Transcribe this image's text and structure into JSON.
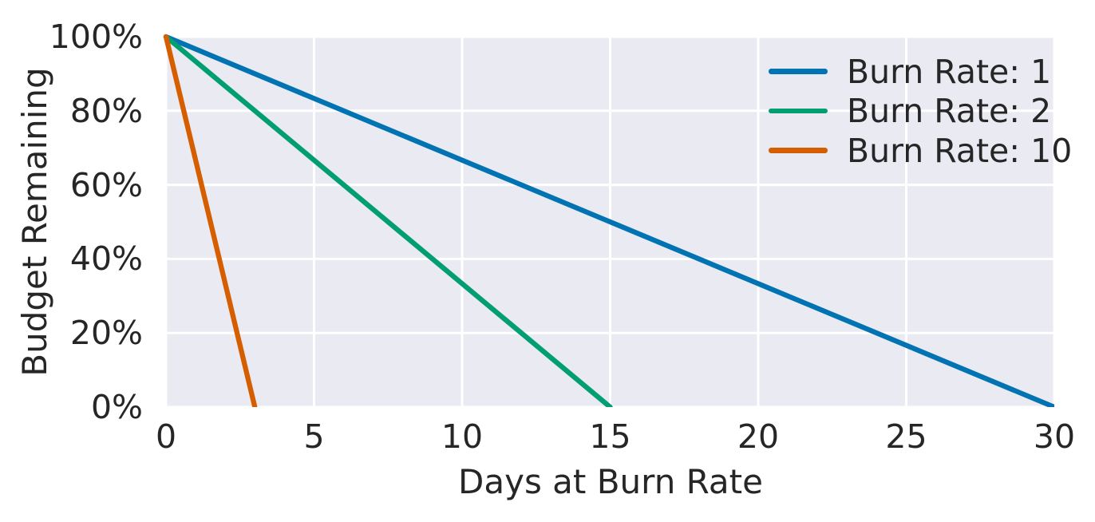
{
  "chart_data": {
    "type": "line",
    "title": "",
    "xlabel": "Days at Burn Rate",
    "ylabel": "Budget Remaining",
    "xlim": [
      0,
      30
    ],
    "ylim": [
      0,
      100
    ],
    "grid": true,
    "x_ticks": {
      "values": [
        0,
        5,
        10,
        15,
        20,
        25,
        30
      ],
      "labels": [
        "0",
        "5",
        "10",
        "15",
        "20",
        "25",
        "30"
      ]
    },
    "y_ticks": {
      "values": [
        0,
        20,
        40,
        60,
        80,
        100
      ],
      "labels": [
        "0%",
        "20%",
        "40%",
        "60%",
        "80%",
        "100%"
      ]
    },
    "legend": {
      "position": "upper right",
      "frame": false
    },
    "series": [
      {
        "name": "Burn Rate: 1",
        "color": "#0173b2",
        "x": [
          0,
          30
        ],
        "y": [
          100,
          0
        ]
      },
      {
        "name": "Burn Rate: 2",
        "color": "#029e73",
        "x": [
          0,
          15
        ],
        "y": [
          100,
          0
        ]
      },
      {
        "name": "Burn Rate: 10",
        "color": "#d55e00",
        "x": [
          0,
          3
        ],
        "y": [
          100,
          0
        ]
      }
    ],
    "colors": {
      "plot_background": "#eaeaf2",
      "grid_line": "#ffffff",
      "text": "#262626"
    }
  }
}
